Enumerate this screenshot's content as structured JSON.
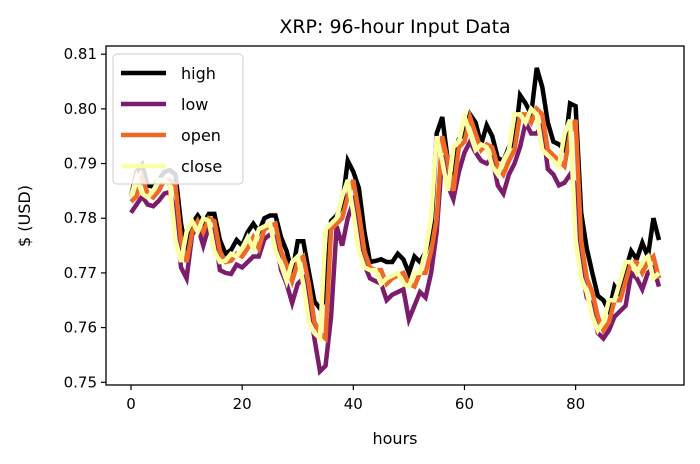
{
  "chart_data": {
    "type": "line",
    "title": "XRP: 96-hour Input Data",
    "xlabel": "hours",
    "ylabel": "$ (USD)",
    "xlim": [
      -4.5,
      99.5
    ],
    "ylim": [
      0.7495,
      0.8115
    ],
    "xticks": [
      0,
      20,
      40,
      60,
      80
    ],
    "yticks": [
      0.75,
      0.76,
      0.77,
      0.78,
      0.79,
      0.8,
      0.81
    ],
    "ytick_labels": [
      "0.75",
      "0.76",
      "0.77",
      "0.78",
      "0.79",
      "0.80",
      "0.81"
    ],
    "legend_position": "upper-left",
    "grid": false,
    "x": [
      0,
      1,
      2,
      3,
      4,
      5,
      6,
      7,
      8,
      9,
      10,
      11,
      12,
      13,
      14,
      15,
      16,
      17,
      18,
      19,
      20,
      21,
      22,
      23,
      24,
      25,
      26,
      27,
      28,
      29,
      30,
      31,
      32,
      33,
      34,
      35,
      36,
      37,
      38,
      39,
      40,
      41,
      42,
      43,
      44,
      45,
      46,
      47,
      48,
      49,
      50,
      51,
      52,
      53,
      54,
      55,
      56,
      57,
      58,
      59,
      60,
      61,
      62,
      63,
      64,
      65,
      66,
      67,
      68,
      69,
      70,
      71,
      72,
      73,
      74,
      75,
      76,
      77,
      78,
      79,
      80,
      81,
      82,
      83,
      84,
      85,
      86,
      87,
      88,
      89,
      90,
      91,
      92,
      93,
      94,
      95
    ],
    "series": [
      {
        "name": "high",
        "color": "#000000",
        "linewidth": 4.5,
        "values": [
          0.784,
          0.7885,
          0.7898,
          0.786,
          0.7858,
          0.787,
          0.7885,
          0.7888,
          0.788,
          0.779,
          0.7735,
          0.779,
          0.7805,
          0.779,
          0.7808,
          0.7808,
          0.776,
          0.7735,
          0.7742,
          0.776,
          0.775,
          0.7775,
          0.779,
          0.7775,
          0.78,
          0.7805,
          0.7805,
          0.7765,
          0.774,
          0.77,
          0.7758,
          0.7758,
          0.7702,
          0.7648,
          0.7635,
          0.7655,
          0.7795,
          0.7805,
          0.7825,
          0.7905,
          0.7885,
          0.7855,
          0.7775,
          0.772,
          0.7722,
          0.7725,
          0.772,
          0.772,
          0.7735,
          0.7725,
          0.77,
          0.773,
          0.772,
          0.7738,
          0.7775,
          0.7955,
          0.7985,
          0.7905,
          0.786,
          0.7945,
          0.7955,
          0.799,
          0.7975,
          0.7935,
          0.797,
          0.795,
          0.791,
          0.7905,
          0.793,
          0.7935,
          0.8025,
          0.801,
          0.799,
          0.8075,
          0.804,
          0.7975,
          0.794,
          0.7935,
          0.7925,
          0.801,
          0.8005,
          0.781,
          0.7745,
          0.77,
          0.7658,
          0.765,
          0.763,
          0.7675,
          0.766,
          0.7705,
          0.774,
          0.7725,
          0.7755,
          0.773,
          0.78,
          0.776
        ]
      },
      {
        "name": "low",
        "color": "#7b1c6d",
        "linewidth": 4.5,
        "values": [
          0.781,
          0.7825,
          0.784,
          0.7825,
          0.7822,
          0.7832,
          0.7845,
          0.7848,
          0.781,
          0.771,
          0.769,
          0.777,
          0.7785,
          0.775,
          0.7785,
          0.7775,
          0.7705,
          0.77,
          0.7698,
          0.7715,
          0.771,
          0.772,
          0.773,
          0.773,
          0.7762,
          0.777,
          0.7765,
          0.7705,
          0.768,
          0.7645,
          0.768,
          0.769,
          0.765,
          0.758,
          0.752,
          0.753,
          0.762,
          0.7785,
          0.775,
          0.78,
          0.783,
          0.778,
          0.7715,
          0.769,
          0.7685,
          0.768,
          0.765,
          0.766,
          0.7665,
          0.767,
          0.7615,
          0.764,
          0.7665,
          0.7655,
          0.77,
          0.7775,
          0.7915,
          0.786,
          0.7835,
          0.7885,
          0.792,
          0.794,
          0.792,
          0.7905,
          0.79,
          0.791,
          0.786,
          0.7845,
          0.788,
          0.79,
          0.793,
          0.7975,
          0.7955,
          0.7955,
          0.797,
          0.789,
          0.788,
          0.786,
          0.7865,
          0.788,
          0.786,
          0.7715,
          0.7655,
          0.764,
          0.759,
          0.758,
          0.7595,
          0.762,
          0.763,
          0.764,
          0.77,
          0.769,
          0.767,
          0.77,
          0.771,
          0.7675
        ]
      },
      {
        "name": "open",
        "color": "#ed6925",
        "linewidth": 4.5,
        "values": [
          0.783,
          0.784,
          0.7875,
          0.7845,
          0.7838,
          0.785,
          0.787,
          0.787,
          0.786,
          0.776,
          0.772,
          0.7775,
          0.7795,
          0.7775,
          0.78,
          0.7795,
          0.774,
          0.772,
          0.7722,
          0.7735,
          0.773,
          0.7745,
          0.7765,
          0.7745,
          0.778,
          0.7785,
          0.779,
          0.774,
          0.7715,
          0.7685,
          0.772,
          0.773,
          0.768,
          0.761,
          0.759,
          0.758,
          0.778,
          0.779,
          0.78,
          0.784,
          0.787,
          0.781,
          0.774,
          0.771,
          0.7705,
          0.7705,
          0.768,
          0.769,
          0.7695,
          0.77,
          0.768,
          0.7675,
          0.77,
          0.77,
          0.774,
          0.78,
          0.795,
          0.7905,
          0.785,
          0.793,
          0.794,
          0.7985,
          0.7955,
          0.7925,
          0.7935,
          0.793,
          0.7895,
          0.788,
          0.7905,
          0.7925,
          0.799,
          0.799,
          0.7975,
          0.8,
          0.799,
          0.7925,
          0.7915,
          0.7905,
          0.7895,
          0.7955,
          0.798,
          0.776,
          0.769,
          0.7665,
          0.762,
          0.7595,
          0.761,
          0.765,
          0.765,
          0.7685,
          0.772,
          0.772,
          0.77,
          0.772,
          0.773,
          0.769
        ]
      },
      {
        "name": "close",
        "color": "#fcffa4",
        "linewidth": 4.5,
        "values": [
          0.784,
          0.7875,
          0.7845,
          0.7838,
          0.785,
          0.787,
          0.787,
          0.786,
          0.776,
          0.772,
          0.7775,
          0.7795,
          0.7775,
          0.78,
          0.7795,
          0.774,
          0.772,
          0.7722,
          0.7735,
          0.773,
          0.7745,
          0.7765,
          0.7745,
          0.778,
          0.7785,
          0.779,
          0.774,
          0.7715,
          0.7685,
          0.772,
          0.773,
          0.768,
          0.761,
          0.759,
          0.758,
          0.778,
          0.779,
          0.78,
          0.784,
          0.787,
          0.781,
          0.774,
          0.771,
          0.7705,
          0.7705,
          0.768,
          0.769,
          0.7695,
          0.77,
          0.768,
          0.7675,
          0.77,
          0.77,
          0.774,
          0.78,
          0.795,
          0.7905,
          0.785,
          0.793,
          0.794,
          0.7985,
          0.7955,
          0.7925,
          0.7935,
          0.793,
          0.7895,
          0.788,
          0.7905,
          0.7925,
          0.799,
          0.799,
          0.7975,
          0.8,
          0.799,
          0.7925,
          0.7915,
          0.7905,
          0.7895,
          0.7955,
          0.798,
          0.776,
          0.769,
          0.7665,
          0.762,
          0.7595,
          0.761,
          0.765,
          0.765,
          0.7685,
          0.772,
          0.772,
          0.77,
          0.772,
          0.773,
          0.769,
          0.77
        ]
      }
    ]
  }
}
